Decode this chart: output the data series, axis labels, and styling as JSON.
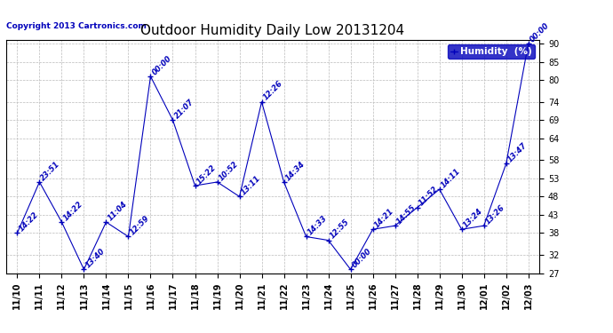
{
  "title": "Outdoor Humidity Daily Low 20131204",
  "copyright": "Copyright 2013 Cartronics.com",
  "legend_label": "Humidity  (%)",
  "dates": [
    "11/10",
    "11/11",
    "11/12",
    "11/13",
    "11/14",
    "11/15",
    "11/16",
    "11/17",
    "11/18",
    "11/19",
    "11/20",
    "11/21",
    "11/22",
    "11/23",
    "11/24",
    "11/25",
    "11/26",
    "11/27",
    "11/28",
    "11/29",
    "11/30",
    "12/01",
    "12/02",
    "12/03"
  ],
  "values": [
    38,
    52,
    41,
    28,
    41,
    37,
    81,
    69,
    51,
    52,
    48,
    74,
    52,
    37,
    36,
    28,
    39,
    40,
    45,
    50,
    39,
    40,
    57,
    90
  ],
  "annotations": [
    "14:22",
    "23:51",
    "14:22",
    "13:40",
    "11:04",
    "12:59",
    "00:00",
    "21:07",
    "15:22",
    "10:52",
    "13:11",
    "12:26",
    "14:34",
    "14:33",
    "12:55",
    "00:00",
    "14:21",
    "14:55",
    "11:52",
    "14:11",
    "13:24",
    "13:26",
    "13:47",
    "00:00"
  ],
  "line_color": "#0000bb",
  "marker_color": "#0000bb",
  "annotation_color": "#0000bb",
  "bg_color": "#ffffff",
  "grid_color": "#bbbbbb",
  "ylim_min": 27,
  "ylim_max": 91,
  "yticks": [
    27,
    32,
    38,
    43,
    48,
    53,
    58,
    64,
    69,
    74,
    80,
    85,
    90
  ],
  "title_fontsize": 11,
  "annotation_fontsize": 6,
  "tick_fontsize": 7,
  "legend_fontsize": 7.5,
  "copyright_fontsize": 6.5
}
